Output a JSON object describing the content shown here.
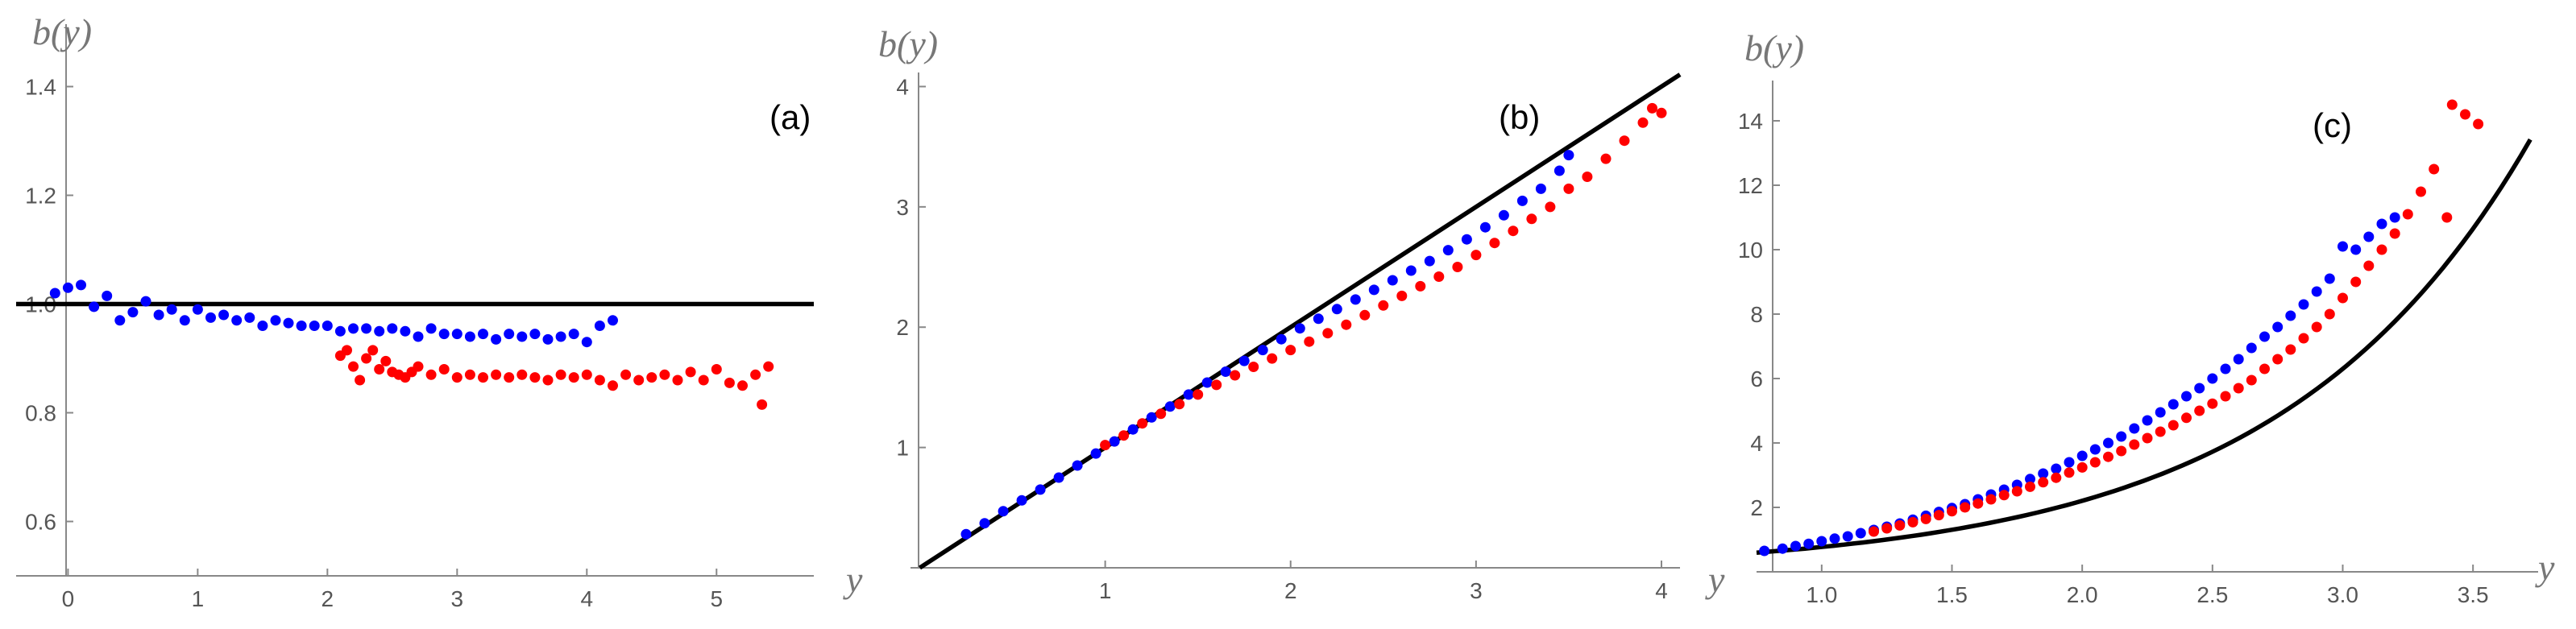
{
  "chart_data": [
    {
      "type": "scatter",
      "panel_label": "(a)",
      "xlabel": "y",
      "ylabel": "b(y)",
      "xlim": [
        -0.4,
        5.75
      ],
      "ylim": [
        0.5,
        1.5
      ],
      "x_ticks": [
        0,
        1,
        2,
        3,
        4,
        5
      ],
      "y_ticks": [
        0.6,
        0.8,
        1.0,
        1.2,
        1.4
      ],
      "y_tick_labels": [
        "0.6",
        "0.8",
        "1.0",
        "1.2",
        "1.4"
      ],
      "grid": false,
      "reference_line": {
        "type": "horizontal",
        "y": 1.0,
        "color": "#000000"
      },
      "series": [
        {
          "color": "#0000ff",
          "x": [
            -0.1,
            0.0,
            0.1,
            0.2,
            0.3,
            0.4,
            0.5,
            0.6,
            0.7,
            0.8,
            0.9,
            1.0,
            1.1,
            1.2,
            1.3,
            1.4,
            1.5,
            1.6,
            1.7,
            1.8,
            1.9,
            2.0,
            2.1,
            2.2,
            2.3,
            2.4,
            2.5,
            2.6,
            2.7,
            2.8,
            2.9,
            3.0,
            3.1,
            3.2,
            3.3,
            3.4,
            3.5,
            3.6,
            3.7,
            3.8,
            3.9,
            4.0,
            4.1,
            4.2
          ],
          "y": [
            1.02,
            1.03,
            1.035,
            0.995,
            1.015,
            0.97,
            0.985,
            1.005,
            0.98,
            0.99,
            0.97,
            0.99,
            0.975,
            0.98,
            0.97,
            0.975,
            0.96,
            0.97,
            0.965,
            0.96,
            0.96,
            0.96,
            0.95,
            0.955,
            0.955,
            0.95,
            0.955,
            0.95,
            0.94,
            0.955,
            0.945,
            0.945,
            0.94,
            0.945,
            0.935,
            0.945,
            0.94,
            0.945,
            0.935,
            0.94,
            0.945,
            0.93,
            0.96,
            0.97
          ]
        },
        {
          "color": "#ff0000",
          "x": [
            2.1,
            2.15,
            2.2,
            2.25,
            2.3,
            2.35,
            2.4,
            2.45,
            2.5,
            2.55,
            2.6,
            2.65,
            2.7,
            2.8,
            2.9,
            3.0,
            3.1,
            3.2,
            3.3,
            3.4,
            3.5,
            3.6,
            3.7,
            3.8,
            3.9,
            4.0,
            4.1,
            4.2,
            4.3,
            4.4,
            4.5,
            4.6,
            4.7,
            4.8,
            4.9,
            5.0,
            5.1,
            5.2,
            5.3,
            5.35,
            5.4
          ],
          "y": [
            0.905,
            0.915,
            0.885,
            0.86,
            0.9,
            0.915,
            0.88,
            0.895,
            0.875,
            0.87,
            0.865,
            0.875,
            0.885,
            0.87,
            0.88,
            0.865,
            0.87,
            0.865,
            0.87,
            0.865,
            0.87,
            0.865,
            0.86,
            0.87,
            0.865,
            0.87,
            0.86,
            0.85,
            0.87,
            0.86,
            0.865,
            0.87,
            0.86,
            0.875,
            0.86,
            0.88,
            0.855,
            0.85,
            0.87,
            0.815,
            0.885
          ]
        }
      ]
    },
    {
      "type": "scatter",
      "panel_label": "(b)",
      "xlabel": "y",
      "ylabel": "b(y)",
      "xlim": [
        -0.05,
        4.1
      ],
      "ylim": [
        0.0,
        4.05
      ],
      "x_ticks": [
        1,
        2,
        3,
        4
      ],
      "y_ticks": [
        1,
        2,
        3,
        4
      ],
      "y_tick_labels": [
        "1",
        "2",
        "3",
        "4"
      ],
      "grid": false,
      "reference_line": {
        "type": "diagonal",
        "slope": 1,
        "intercept": 0,
        "from_x": 0.0,
        "to_x": 4.1,
        "color": "#000000"
      },
      "series": [
        {
          "color": "#0000ff",
          "x": [
            0.25,
            0.35,
            0.45,
            0.55,
            0.65,
            0.75,
            0.85,
            0.95,
            1.05,
            1.15,
            1.25,
            1.35,
            1.45,
            1.55,
            1.65,
            1.75,
            1.85,
            1.95,
            2.05,
            2.15,
            2.25,
            2.35,
            2.45,
            2.55,
            2.65,
            2.75,
            2.85,
            2.95,
            3.05,
            3.15,
            3.25,
            3.35,
            3.45,
            3.5
          ],
          "y": [
            0.28,
            0.37,
            0.47,
            0.56,
            0.65,
            0.75,
            0.85,
            0.95,
            1.05,
            1.15,
            1.25,
            1.34,
            1.44,
            1.54,
            1.63,
            1.72,
            1.81,
            1.9,
            1.99,
            2.07,
            2.15,
            2.23,
            2.31,
            2.39,
            2.47,
            2.55,
            2.64,
            2.73,
            2.83,
            2.93,
            3.05,
            3.15,
            3.3,
            3.43
          ]
        },
        {
          "color": "#ff0000",
          "x": [
            1.0,
            1.1,
            1.2,
            1.3,
            1.4,
            1.5,
            1.6,
            1.7,
            1.8,
            1.9,
            2.0,
            2.1,
            2.2,
            2.3,
            2.4,
            2.5,
            2.6,
            2.7,
            2.8,
            2.9,
            3.0,
            3.1,
            3.2,
            3.3,
            3.4,
            3.5,
            3.6,
            3.7,
            3.8,
            3.9,
            3.95,
            4.0
          ],
          "y": [
            1.02,
            1.1,
            1.2,
            1.28,
            1.36,
            1.44,
            1.52,
            1.6,
            1.67,
            1.74,
            1.81,
            1.88,
            1.95,
            2.02,
            2.1,
            2.18,
            2.26,
            2.34,
            2.42,
            2.5,
            2.6,
            2.7,
            2.8,
            2.9,
            3.0,
            3.15,
            3.25,
            3.4,
            3.55,
            3.7,
            3.82,
            3.78
          ]
        }
      ]
    },
    {
      "type": "scatter",
      "panel_label": "(c)",
      "xlabel": "y",
      "ylabel": "b(y)",
      "xlim": [
        0.75,
        3.75
      ],
      "ylim": [
        0.0,
        15.0
      ],
      "x_ticks": [
        1.0,
        1.5,
        2.0,
        2.5,
        3.0,
        3.5
      ],
      "x_tick_labels": [
        "1.0",
        "1.5",
        "2.0",
        "2.5",
        "3.0",
        "3.5"
      ],
      "y_ticks": [
        2,
        4,
        6,
        8,
        10,
        12,
        14
      ],
      "y_tick_labels": [
        "2",
        "4",
        "6",
        "8",
        "10",
        "12",
        "14"
      ],
      "grid": false,
      "reference_line": {
        "type": "exponential",
        "formula": "b = 0.27 * exp(1.05 * y)",
        "from_x": 0.75,
        "to_x": 3.72,
        "color": "#000000"
      },
      "series": [
        {
          "color": "#0000ff",
          "x": [
            0.78,
            0.85,
            0.9,
            0.95,
            1.0,
            1.05,
            1.1,
            1.15,
            1.2,
            1.25,
            1.3,
            1.35,
            1.4,
            1.45,
            1.5,
            1.55,
            1.6,
            1.65,
            1.7,
            1.75,
            1.8,
            1.85,
            1.9,
            1.95,
            2.0,
            2.05,
            2.1,
            2.15,
            2.2,
            2.25,
            2.3,
            2.35,
            2.4,
            2.45,
            2.5,
            2.55,
            2.6,
            2.65,
            2.7,
            2.75,
            2.8,
            2.85,
            2.9,
            2.95,
            3.0,
            3.05,
            3.1,
            3.15,
            3.2
          ],
          "y": [
            0.65,
            0.72,
            0.8,
            0.87,
            0.95,
            1.03,
            1.1,
            1.2,
            1.3,
            1.4,
            1.5,
            1.62,
            1.74,
            1.86,
            1.98,
            2.1,
            2.25,
            2.4,
            2.55,
            2.7,
            2.88,
            3.05,
            3.2,
            3.4,
            3.6,
            3.8,
            4.0,
            4.2,
            4.45,
            4.7,
            4.95,
            5.2,
            5.45,
            5.7,
            6.0,
            6.3,
            6.6,
            6.95,
            7.3,
            7.6,
            7.95,
            8.3,
            8.7,
            9.1,
            10.1,
            10.0,
            10.4,
            10.8,
            11.0
          ]
        },
        {
          "color": "#ff0000",
          "x": [
            1.2,
            1.25,
            1.3,
            1.35,
            1.4,
            1.45,
            1.5,
            1.55,
            1.6,
            1.65,
            1.7,
            1.75,
            1.8,
            1.85,
            1.9,
            1.95,
            2.0,
            2.05,
            2.1,
            2.15,
            2.2,
            2.25,
            2.3,
            2.35,
            2.4,
            2.45,
            2.5,
            2.55,
            2.6,
            2.65,
            2.7,
            2.75,
            2.8,
            2.85,
            2.9,
            2.95,
            3.0,
            3.05,
            3.1,
            3.15,
            3.2,
            3.25,
            3.3,
            3.35,
            3.4,
            3.42,
            3.47,
            3.52
          ],
          "y": [
            1.25,
            1.35,
            1.44,
            1.54,
            1.64,
            1.76,
            1.88,
            2.0,
            2.12,
            2.25,
            2.38,
            2.5,
            2.64,
            2.78,
            2.92,
            3.08,
            3.24,
            3.4,
            3.57,
            3.75,
            3.95,
            4.15,
            4.35,
            4.55,
            4.78,
            5.0,
            5.22,
            5.45,
            5.7,
            5.95,
            6.3,
            6.6,
            6.9,
            7.25,
            7.6,
            8.0,
            8.5,
            9.0,
            9.5,
            10.0,
            10.5,
            11.1,
            11.8,
            12.5,
            11.0,
            14.5,
            14.2,
            13.9
          ]
        }
      ]
    }
  ]
}
